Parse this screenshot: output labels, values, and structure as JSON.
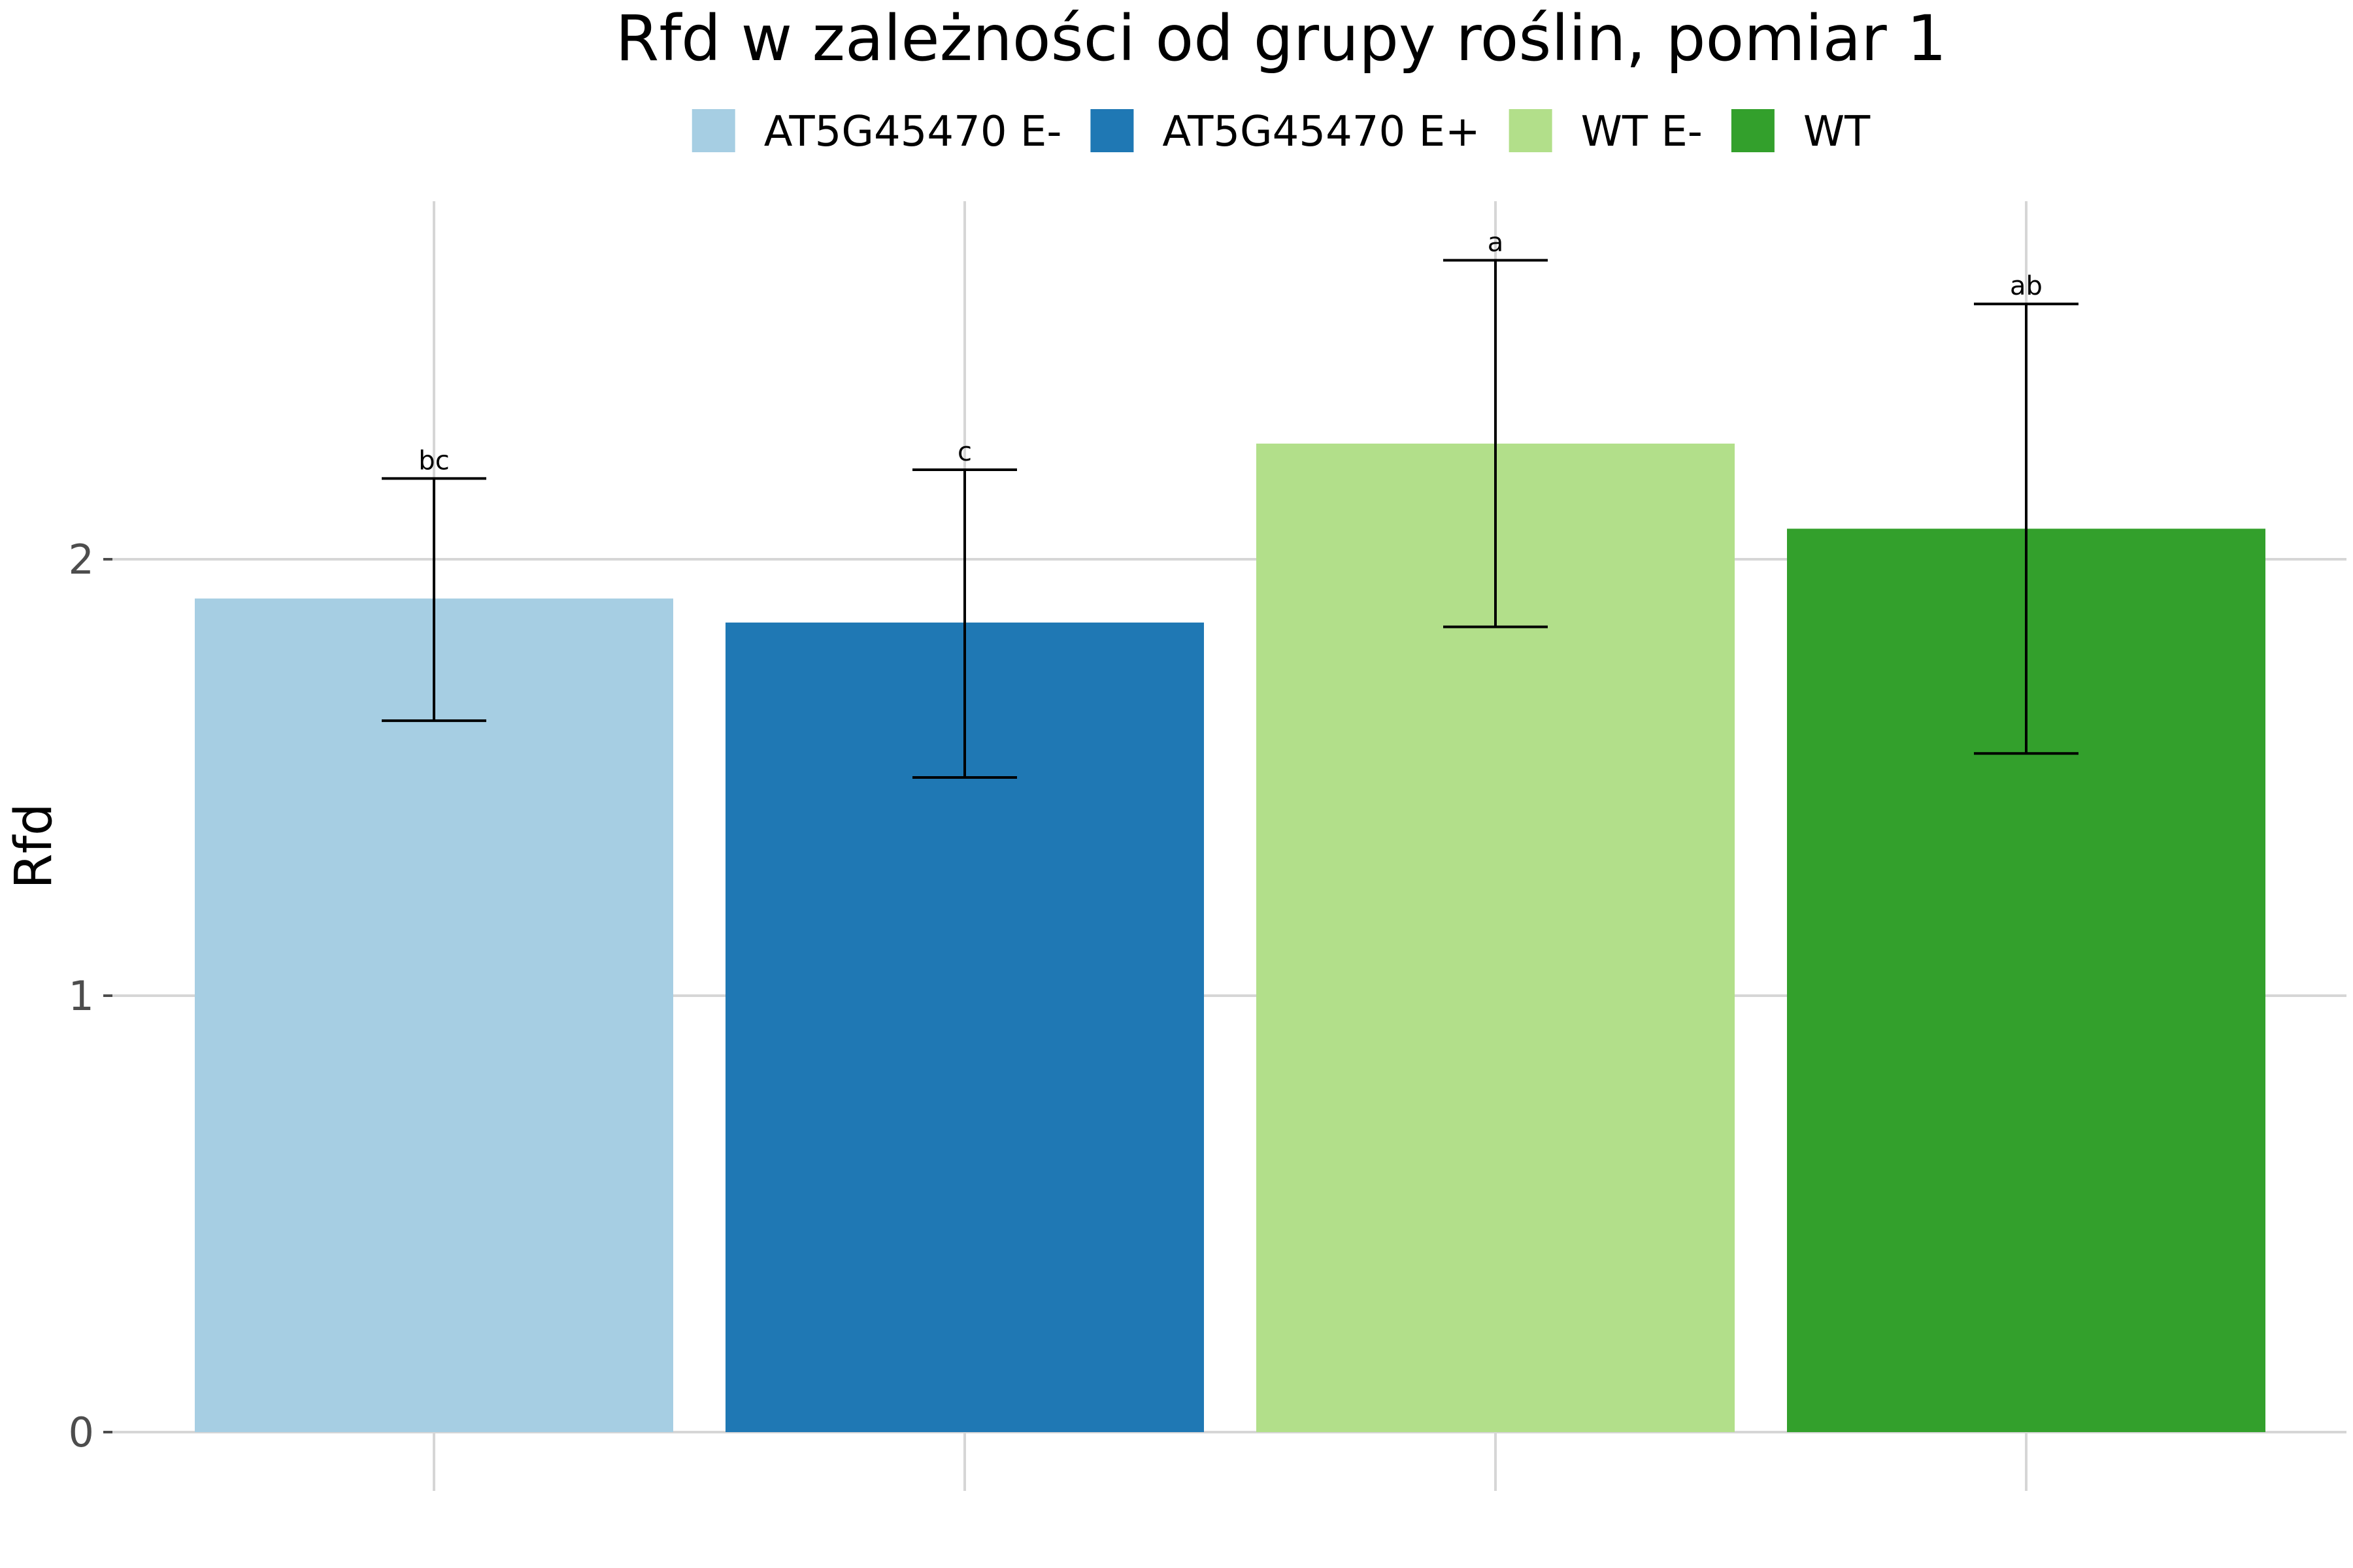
{
  "chart_data": {
    "type": "bar",
    "title": "Rfd w zależności od grupy roślin, pomiar 1",
    "xlabel": "",
    "ylabel": "Rfd",
    "ylim": [
      0,
      2.82
    ],
    "yticks": [
      0,
      1,
      2
    ],
    "grid": true,
    "legend_position": "top",
    "categories": [
      "AT5G45470 E-",
      "AT5G45470 E+",
      "WT E-",
      "WT"
    ],
    "values": [
      1.91,
      1.855,
      2.265,
      2.07
    ],
    "error_low": [
      1.63,
      1.5,
      1.845,
      1.555
    ],
    "error_high": [
      2.185,
      2.205,
      2.685,
      2.585
    ],
    "significance": [
      "bc",
      "c",
      "a",
      "ab"
    ],
    "colors": [
      "#a6cee3",
      "#1f78b4",
      "#b2df8a",
      "#33a02c"
    ]
  }
}
